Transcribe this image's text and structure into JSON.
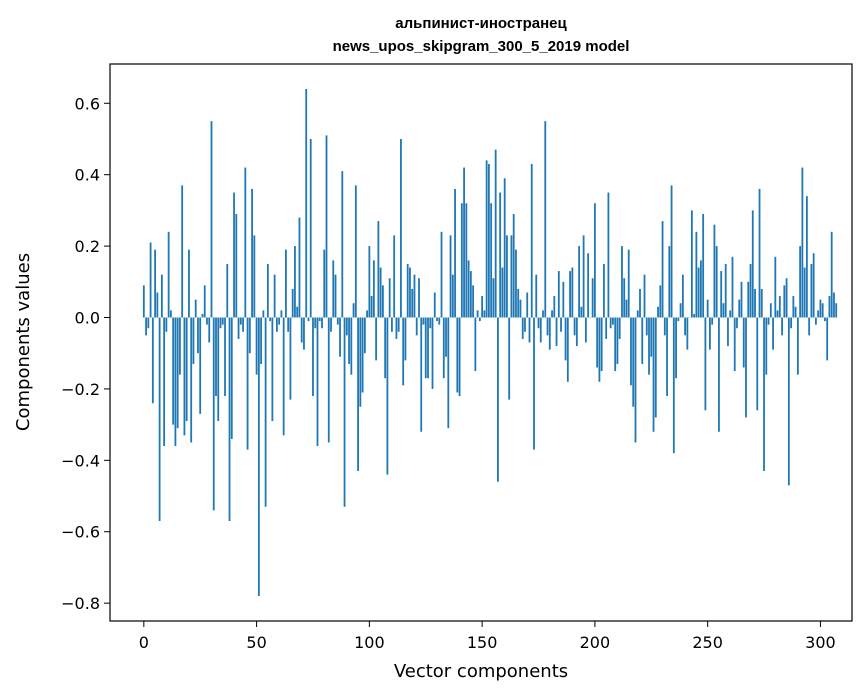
{
  "chart_data": {
    "type": "bar",
    "title": "альпинист-иностранец",
    "subtitle": "news_upos_skipgram_300_5_2019 model",
    "xlabel": "Vector components",
    "ylabel": "Components values",
    "xlim": [
      -15,
      314
    ],
    "ylim": [
      -0.85,
      0.71
    ],
    "x_ticks": [
      0,
      50,
      100,
      150,
      200,
      250,
      300
    ],
    "x_tick_labels": [
      "0",
      "50",
      "100",
      "150",
      "200",
      "250",
      "300"
    ],
    "y_ticks": [
      -0.8,
      -0.6,
      -0.4,
      -0.2,
      0.0,
      0.2,
      0.4,
      0.6
    ],
    "y_tick_labels": [
      "−0.8",
      "−0.6",
      "−0.4",
      "−0.2",
      "0.0",
      "0.2",
      "0.4",
      "0.6"
    ],
    "grid": false,
    "color": "#1f77b4",
    "values": [
      0.09,
      -0.05,
      -0.03,
      0.21,
      -0.24,
      0.19,
      0.07,
      -0.57,
      0.12,
      -0.36,
      -0.04,
      0.24,
      0.02,
      -0.3,
      -0.36,
      -0.31,
      -0.16,
      0.37,
      -0.33,
      -0.29,
      0.19,
      -0.35,
      -0.13,
      0.05,
      -0.1,
      -0.27,
      0.01,
      0.09,
      -0.02,
      -0.07,
      0.55,
      -0.54,
      -0.22,
      -0.29,
      -0.03,
      -0.02,
      -0.22,
      0.15,
      -0.57,
      -0.34,
      0.35,
      0.29,
      -0.06,
      -0.02,
      -0.04,
      0.42,
      -0.37,
      -0.1,
      0.36,
      0.23,
      -0.16,
      -0.78,
      -0.13,
      0.02,
      -0.53,
      0.15,
      -0.01,
      -0.29,
      0.12,
      -0.04,
      -0.02,
      0.02,
      -0.33,
      0.19,
      -0.04,
      -0.23,
      0.08,
      0.2,
      0.03,
      0.28,
      -0.07,
      -0.09,
      0.64,
      -0.01,
      0.5,
      -0.22,
      -0.03,
      -0.36,
      -0.01,
      -0.03,
      0.19,
      0.51,
      -0.35,
      -0.04,
      0.16,
      0.12,
      -0.02,
      -0.11,
      0.41,
      -0.53,
      -0.05,
      -0.13,
      -0.16,
      0.04,
      0.37,
      -0.43,
      -0.25,
      -0.21,
      -0.1,
      0.02,
      0.2,
      0.06,
      0.16,
      -0.12,
      0.27,
      0.14,
      0.09,
      -0.17,
      -0.44,
      0.11,
      -0.04,
      0.23,
      -0.06,
      -0.04,
      0.5,
      -0.19,
      -0.12,
      0.15,
      0.14,
      0.08,
      0.12,
      -0.05,
      0.11,
      -0.32,
      -0.02,
      -0.17,
      -0.17,
      -0.03,
      -0.2,
      0.07,
      -0.01,
      -0.02,
      0.24,
      -0.17,
      -0.11,
      -0.31,
      0.23,
      0.12,
      0.36,
      -0.21,
      -0.22,
      0.32,
      0.42,
      0.32,
      0.16,
      0.13,
      0.09,
      -0.15,
      0.02,
      -0.01,
      0.06,
      0.02,
      0.44,
      0.43,
      0.32,
      0.11,
      0.47,
      -0.46,
      0.35,
      0.14,
      0.39,
      0.23,
      -0.23,
      0.23,
      0.29,
      0.19,
      0.08,
      0.05,
      -0.06,
      -0.04,
      0.07,
      -0.07,
      0.43,
      -0.37,
      0.12,
      -0.03,
      -0.07,
      0.02,
      0.55,
      -0.05,
      -0.09,
      0.02,
      0.06,
      -0.08,
      0.13,
      -0.04,
      0.1,
      -0.12,
      -0.18,
      0.13,
      0.14,
      -0.05,
      -0.08,
      0.2,
      0.03,
      0.23,
      -0.07,
      0.18,
      0.0,
      0.11,
      0.32,
      -0.14,
      -0.18,
      -0.15,
      0.15,
      -0.06,
      0.35,
      -0.03,
      -0.02,
      -0.15,
      -0.13,
      -0.06,
      0.2,
      0.11,
      0.05,
      0.19,
      -0.19,
      -0.25,
      -0.35,
      0.02,
      0.08,
      -0.13,
      0.12,
      -0.05,
      -0.16,
      -0.11,
      -0.32,
      -0.28,
      0.03,
      0.09,
      0.27,
      -0.05,
      -0.22,
      0.2,
      0.37,
      -0.38,
      -0.17,
      -0.01,
      0.04,
      0.12,
      -0.05,
      -0.09,
      0.0,
      0.3,
      0.01,
      0.24,
      0.14,
      0.16,
      0.29,
      -0.26,
      0.05,
      -0.09,
      -0.02,
      0.26,
      0.2,
      -0.32,
      0.13,
      0.04,
      0.15,
      -0.08,
      0.02,
      0.17,
      -0.15,
      -0.03,
      0.05,
      0.1,
      -0.14,
      -0.28,
      0.1,
      0.15,
      0.3,
      0.08,
      -0.26,
      0.36,
      0.08,
      -0.43,
      -0.16,
      -0.02,
      0.04,
      -0.09,
      0.17,
      0.02,
      0.06,
      -0.05,
      0.09,
      0.11,
      -0.47,
      -0.03,
      0.06,
      0.03,
      -0.16,
      0.2,
      0.42,
      0.14,
      0.34,
      -0.05,
      0.15,
      0.18,
      -0.02,
      0.02,
      0.05,
      0.04,
      -0.01,
      -0.12,
      0.06,
      0.24,
      0.07,
      0.04
    ]
  }
}
